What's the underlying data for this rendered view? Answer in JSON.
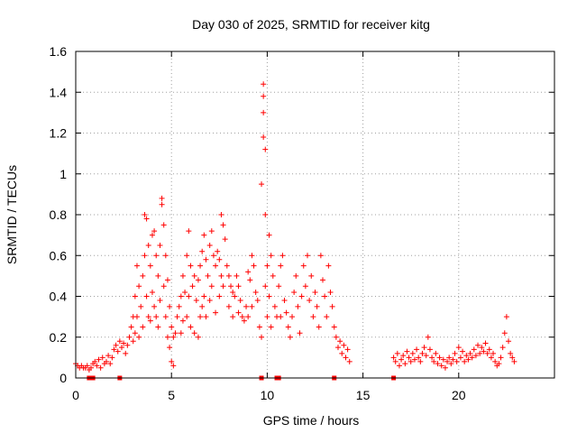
{
  "chart_data": {
    "type": "scatter",
    "title": "Day 030 of 2025, SRMTID for receiver kitg",
    "xlabel": "GPS time / hours",
    "ylabel": "SRMTID / TECUs",
    "xlim": [
      0,
      25
    ],
    "ylim": [
      0,
      1.6
    ],
    "x_ticks": [
      0,
      5,
      10,
      15,
      20
    ],
    "x_tick_labels": [
      "0",
      "5",
      "10",
      "15",
      "20"
    ],
    "y_ticks": [
      0,
      0.2,
      0.4,
      0.6,
      0.8,
      1.0,
      1.2,
      1.4,
      1.6
    ],
    "y_tick_labels": [
      "0",
      "0.2",
      "0.4",
      "0.6",
      "0.8",
      "1",
      "1.2",
      "1.4",
      "1.6"
    ],
    "grid": true,
    "marker": "+",
    "series_color": "#ff0000",
    "series": [
      {
        "name": "SRMTID",
        "points": [
          [
            0.0,
            0.07
          ],
          [
            0.1,
            0.06
          ],
          [
            0.2,
            0.05
          ],
          [
            0.3,
            0.06
          ],
          [
            0.4,
            0.05
          ],
          [
            0.5,
            0.05
          ],
          [
            0.6,
            0.06
          ],
          [
            0.7,
            0.04
          ],
          [
            0.8,
            0.05
          ],
          [
            0.9,
            0.07
          ],
          [
            1.0,
            0.08
          ],
          [
            1.1,
            0.06
          ],
          [
            1.2,
            0.09
          ],
          [
            1.3,
            0.05
          ],
          [
            1.4,
            0.1
          ],
          [
            1.5,
            0.07
          ],
          [
            1.6,
            0.08
          ],
          [
            1.7,
            0.11
          ],
          [
            1.8,
            0.07
          ],
          [
            1.9,
            0.1
          ],
          [
            2.0,
            0.14
          ],
          [
            2.1,
            0.16
          ],
          [
            2.2,
            0.13
          ],
          [
            2.3,
            0.18
          ],
          [
            2.4,
            0.15
          ],
          [
            2.5,
            0.17
          ],
          [
            2.6,
            0.12
          ],
          [
            2.7,
            0.16
          ],
          [
            2.8,
            0.2
          ],
          [
            2.9,
            0.25
          ],
          [
            3.0,
            0.3
          ],
          [
            3.0,
            0.18
          ],
          [
            3.1,
            0.4
          ],
          [
            3.1,
            0.22
          ],
          [
            3.2,
            0.55
          ],
          [
            3.2,
            0.3
          ],
          [
            3.3,
            0.45
          ],
          [
            3.3,
            0.2
          ],
          [
            3.4,
            0.35
          ],
          [
            3.5,
            0.5
          ],
          [
            3.5,
            0.25
          ],
          [
            3.6,
            0.8
          ],
          [
            3.6,
            0.6
          ],
          [
            3.7,
            0.78
          ],
          [
            3.7,
            0.4
          ],
          [
            3.8,
            0.65
          ],
          [
            3.8,
            0.3
          ],
          [
            3.9,
            0.55
          ],
          [
            3.9,
            0.28
          ],
          [
            4.0,
            0.7
          ],
          [
            4.0,
            0.42
          ],
          [
            4.1,
            0.72
          ],
          [
            4.1,
            0.35
          ],
          [
            4.2,
            0.6
          ],
          [
            4.2,
            0.3
          ],
          [
            4.3,
            0.5
          ],
          [
            4.3,
            0.25
          ],
          [
            4.4,
            0.65
          ],
          [
            4.4,
            0.38
          ],
          [
            4.5,
            0.88
          ],
          [
            4.5,
            0.85
          ],
          [
            4.6,
            0.75
          ],
          [
            4.6,
            0.45
          ],
          [
            4.7,
            0.6
          ],
          [
            4.7,
            0.3
          ],
          [
            4.8,
            0.48
          ],
          [
            4.8,
            0.2
          ],
          [
            4.9,
            0.35
          ],
          [
            4.9,
            0.15
          ],
          [
            5.0,
            0.25
          ],
          [
            5.0,
            0.08
          ],
          [
            5.1,
            0.2
          ],
          [
            5.1,
            0.06
          ],
          [
            5.2,
            0.22
          ],
          [
            5.3,
            0.3
          ],
          [
            5.4,
            0.35
          ],
          [
            5.5,
            0.4
          ],
          [
            5.5,
            0.22
          ],
          [
            5.6,
            0.5
          ],
          [
            5.6,
            0.28
          ],
          [
            5.7,
            0.42
          ],
          [
            5.8,
            0.6
          ],
          [
            5.8,
            0.3
          ],
          [
            5.9,
            0.72
          ],
          [
            5.9,
            0.4
          ],
          [
            6.0,
            0.55
          ],
          [
            6.0,
            0.25
          ],
          [
            6.1,
            0.45
          ],
          [
            6.2,
            0.5
          ],
          [
            6.2,
            0.22
          ],
          [
            6.3,
            0.38
          ],
          [
            6.4,
            0.48
          ],
          [
            6.4,
            0.2
          ],
          [
            6.5,
            0.55
          ],
          [
            6.5,
            0.3
          ],
          [
            6.6,
            0.62
          ],
          [
            6.6,
            0.35
          ],
          [
            6.7,
            0.7
          ],
          [
            6.7,
            0.4
          ],
          [
            6.8,
            0.58
          ],
          [
            6.8,
            0.3
          ],
          [
            6.9,
            0.5
          ],
          [
            7.0,
            0.65
          ],
          [
            7.0,
            0.38
          ],
          [
            7.1,
            0.72
          ],
          [
            7.1,
            0.45
          ],
          [
            7.2,
            0.6
          ],
          [
            7.3,
            0.55
          ],
          [
            7.3,
            0.32
          ],
          [
            7.4,
            0.62
          ],
          [
            7.5,
            0.58
          ],
          [
            7.5,
            0.4
          ],
          [
            7.6,
            0.8
          ],
          [
            7.6,
            0.5
          ],
          [
            7.7,
            0.75
          ],
          [
            7.7,
            0.45
          ],
          [
            7.8,
            0.68
          ],
          [
            7.9,
            0.55
          ],
          [
            8.0,
            0.5
          ],
          [
            8.0,
            0.35
          ],
          [
            8.1,
            0.45
          ],
          [
            8.2,
            0.42
          ],
          [
            8.2,
            0.3
          ],
          [
            8.3,
            0.4
          ],
          [
            8.4,
            0.5
          ],
          [
            8.5,
            0.45
          ],
          [
            8.5,
            0.32
          ],
          [
            8.6,
            0.38
          ],
          [
            8.7,
            0.3
          ],
          [
            8.8,
            0.28
          ],
          [
            8.9,
            0.35
          ],
          [
            9.0,
            0.52
          ],
          [
            9.0,
            0.3
          ],
          [
            9.1,
            0.48
          ],
          [
            9.2,
            0.6
          ],
          [
            9.2,
            0.35
          ],
          [
            9.3,
            0.55
          ],
          [
            9.4,
            0.42
          ],
          [
            9.5,
            0.38
          ],
          [
            9.6,
            0.25
          ],
          [
            9.7,
            0.2
          ],
          [
            9.7,
            0.95
          ],
          [
            9.8,
            1.44
          ],
          [
            9.8,
            1.38
          ],
          [
            9.8,
            1.3
          ],
          [
            9.8,
            1.18
          ],
          [
            9.9,
            1.12
          ],
          [
            9.9,
            0.8
          ],
          [
            9.9,
            0.45
          ],
          [
            10.0,
            0.55
          ],
          [
            10.0,
            0.3
          ],
          [
            10.1,
            0.7
          ],
          [
            10.1,
            0.4
          ],
          [
            10.2,
            0.6
          ],
          [
            10.2,
            0.25
          ],
          [
            10.3,
            0.5
          ],
          [
            10.4,
            0.35
          ],
          [
            10.5,
            0.3
          ],
          [
            10.6,
            0.45
          ],
          [
            10.7,
            0.55
          ],
          [
            10.7,
            0.3
          ],
          [
            10.8,
            0.6
          ],
          [
            10.9,
            0.38
          ],
          [
            11.0,
            0.32
          ],
          [
            11.1,
            0.25
          ],
          [
            11.2,
            0.2
          ],
          [
            11.3,
            0.3
          ],
          [
            11.4,
            0.42
          ],
          [
            11.5,
            0.5
          ],
          [
            11.6,
            0.35
          ],
          [
            11.7,
            0.22
          ],
          [
            11.8,
            0.4
          ],
          [
            11.9,
            0.55
          ],
          [
            12.0,
            0.45
          ],
          [
            12.1,
            0.6
          ],
          [
            12.2,
            0.38
          ],
          [
            12.3,
            0.5
          ],
          [
            12.4,
            0.3
          ],
          [
            12.5,
            0.42
          ],
          [
            12.6,
            0.35
          ],
          [
            12.7,
            0.25
          ],
          [
            12.8,
            0.6
          ],
          [
            12.9,
            0.48
          ],
          [
            13.0,
            0.4
          ],
          [
            13.1,
            0.3
          ],
          [
            13.2,
            0.55
          ],
          [
            13.3,
            0.42
          ],
          [
            13.4,
            0.35
          ],
          [
            13.5,
            0.25
          ],
          [
            13.6,
            0.2
          ],
          [
            13.7,
            0.15
          ],
          [
            13.8,
            0.18
          ],
          [
            13.9,
            0.12
          ],
          [
            14.0,
            0.16
          ],
          [
            14.1,
            0.1
          ],
          [
            14.2,
            0.14
          ],
          [
            14.3,
            0.08
          ],
          [
            16.6,
            0.1
          ],
          [
            16.7,
            0.08
          ],
          [
            16.8,
            0.12
          ],
          [
            16.9,
            0.06
          ],
          [
            17.0,
            0.09
          ],
          [
            17.1,
            0.11
          ],
          [
            17.2,
            0.07
          ],
          [
            17.3,
            0.13
          ],
          [
            17.4,
            0.1
          ],
          [
            17.5,
            0.08
          ],
          [
            17.6,
            0.12
          ],
          [
            17.7,
            0.09
          ],
          [
            17.8,
            0.14
          ],
          [
            17.9,
            0.1
          ],
          [
            18.0,
            0.08
          ],
          [
            18.1,
            0.12
          ],
          [
            18.2,
            0.15
          ],
          [
            18.3,
            0.11
          ],
          [
            18.4,
            0.2
          ],
          [
            18.5,
            0.14
          ],
          [
            18.6,
            0.1
          ],
          [
            18.7,
            0.08
          ],
          [
            18.8,
            0.12
          ],
          [
            18.9,
            0.07
          ],
          [
            19.0,
            0.1
          ],
          [
            19.1,
            0.06
          ],
          [
            19.2,
            0.09
          ],
          [
            19.3,
            0.05
          ],
          [
            19.4,
            0.08
          ],
          [
            19.5,
            0.1
          ],
          [
            19.6,
            0.07
          ],
          [
            19.7,
            0.09
          ],
          [
            19.8,
            0.12
          ],
          [
            19.9,
            0.08
          ],
          [
            20.0,
            0.15
          ],
          [
            20.1,
            0.1
          ],
          [
            20.2,
            0.13
          ],
          [
            20.3,
            0.08
          ],
          [
            20.4,
            0.11
          ],
          [
            20.5,
            0.09
          ],
          [
            20.6,
            0.12
          ],
          [
            20.7,
            0.1
          ],
          [
            20.8,
            0.14
          ],
          [
            20.9,
            0.11
          ],
          [
            21.0,
            0.16
          ],
          [
            21.1,
            0.12
          ],
          [
            21.2,
            0.15
          ],
          [
            21.3,
            0.13
          ],
          [
            21.4,
            0.17
          ],
          [
            21.5,
            0.12
          ],
          [
            21.6,
            0.14
          ],
          [
            21.7,
            0.1
          ],
          [
            21.8,
            0.12
          ],
          [
            21.9,
            0.08
          ],
          [
            22.0,
            0.06
          ],
          [
            22.1,
            0.07
          ],
          [
            22.2,
            0.1
          ],
          [
            22.3,
            0.15
          ],
          [
            22.4,
            0.22
          ],
          [
            22.5,
            0.3
          ],
          [
            22.6,
            0.18
          ],
          [
            22.7,
            0.12
          ],
          [
            22.8,
            0.1
          ],
          [
            22.9,
            0.08
          ]
        ]
      }
    ],
    "baseline_markers": {
      "y": 0.0,
      "x": [
        0.7,
        0.9,
        2.3,
        9.7,
        10.5,
        10.6,
        13.5,
        16.6
      ]
    }
  }
}
